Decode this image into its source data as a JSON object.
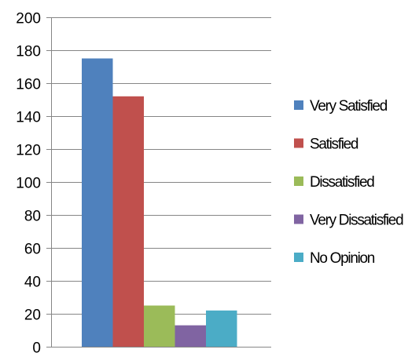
{
  "chart_data": {
    "type": "bar",
    "categories": [
      ""
    ],
    "series": [
      {
        "name": "Very Satisfied",
        "values": [
          175
        ],
        "color": "#4F81BD"
      },
      {
        "name": "Satisfied",
        "values": [
          152
        ],
        "color": "#C0504D"
      },
      {
        "name": "Dissatisfied",
        "values": [
          25
        ],
        "color": "#9BBB59"
      },
      {
        "name": "Very Dissatisfied",
        "values": [
          13
        ],
        "color": "#8064A2"
      },
      {
        "name": "No Opinion",
        "values": [
          22
        ],
        "color": "#4BACC6"
      }
    ],
    "ylim": [
      0,
      200
    ],
    "yticks": [
      0,
      20,
      40,
      60,
      80,
      100,
      120,
      140,
      160,
      180,
      200
    ],
    "grid": true,
    "legend": "right",
    "title": "",
    "xlabel": "",
    "ylabel": ""
  }
}
